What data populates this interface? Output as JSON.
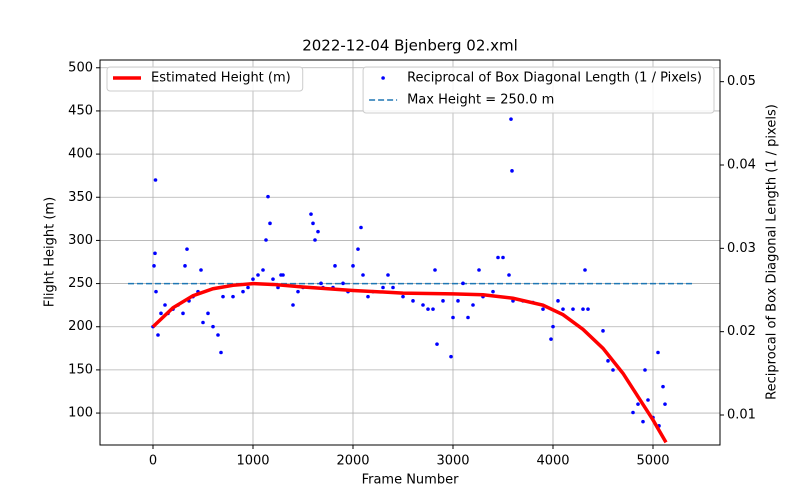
{
  "chart_data": {
    "type": "line",
    "title": "2022-12-04 Bjenberg 02.xml",
    "x_label": "Frame Number",
    "y_label": "Flight Height (m)",
    "y2_label": "Reciprocal of Box Diagonal Length (1 / pixels)",
    "xlim": [
      -530,
      5670
    ],
    "xticks": [
      0,
      1000,
      2000,
      3000,
      4000,
      5000
    ],
    "ylim": [
      63,
      509
    ],
    "yticks": [
      100,
      150,
      200,
      250,
      300,
      350,
      400,
      450,
      500
    ],
    "y2lim": [
      0.0064,
      0.0526
    ],
    "y2ticks": [
      0.01,
      0.02,
      0.03,
      0.04,
      0.05
    ],
    "grid": true,
    "series": [
      {
        "name": "Estimated Height (m)",
        "type": "line",
        "color": "#ff0000",
        "legend": "upper left",
        "x": [
          0,
          200,
          400,
          600,
          800,
          1000,
          1200,
          1500,
          2000,
          2500,
          3000,
          3300,
          3600,
          3900,
          4100,
          4300,
          4500,
          4700,
          4900,
          5000,
          5130
        ],
        "values": [
          200,
          222,
          236,
          244,
          248,
          250,
          249,
          246,
          242,
          239,
          238,
          237,
          233,
          225,
          214,
          197,
          175,
          146,
          110,
          92,
          66
        ]
      },
      {
        "name": "Reciprocal of Box Diagonal Length (1 / Pixels)",
        "type": "scatter",
        "axis": "y2",
        "color": "#0000ff",
        "legend": "upper right",
        "x": [
          0,
          10,
          20,
          25,
          30,
          50,
          80,
          120,
          150,
          200,
          250,
          300,
          320,
          340,
          360,
          400,
          450,
          480,
          500,
          550,
          600,
          650,
          680,
          700,
          800,
          900,
          950,
          1000,
          1050,
          1100,
          1130,
          1150,
          1170,
          1200,
          1250,
          1280,
          1300,
          1400,
          1450,
          1500,
          1580,
          1600,
          1620,
          1650,
          1680,
          1700,
          1800,
          1820,
          1900,
          1950,
          2000,
          2050,
          2080,
          2100,
          2150,
          2200,
          2300,
          2350,
          2400,
          2500,
          2600,
          2700,
          2750,
          2800,
          2820,
          2840,
          2900,
          2980,
          3000,
          3050,
          3100,
          3150,
          3200,
          3260,
          3300,
          3400,
          3450,
          3500,
          3560,
          3580,
          3590,
          3600,
          3700,
          3800,
          3900,
          3980,
          4000,
          4050,
          4100,
          4200,
          4300,
          4320,
          4350,
          4500,
          4550,
          4600,
          4800,
          4850,
          4900,
          4920,
          4950,
          5000,
          5050,
          5060,
          5100,
          5120
        ],
        "values": [
          0.0206,
          0.0279,
          0.0294,
          0.0382,
          0.0248,
          0.0196,
          0.0222,
          0.0232,
          0.0222,
          0.0227,
          0.0232,
          0.0222,
          0.0279,
          0.0299,
          0.0237,
          0.0242,
          0.0248,
          0.0274,
          0.0211,
          0.0222,
          0.0206,
          0.0196,
          0.0175,
          0.0242,
          0.0242,
          0.0248,
          0.0253,
          0.0263,
          0.0268,
          0.0274,
          0.031,
          0.0362,
          0.033,
          0.0263,
          0.0253,
          0.0268,
          0.0268,
          0.0232,
          0.0248,
          0.0253,
          0.0341,
          0.033,
          0.031,
          0.032,
          0.0258,
          0.0253,
          0.0253,
          0.0279,
          0.0258,
          0.0248,
          0.0279,
          0.0299,
          0.0325,
          0.0268,
          0.0242,
          0.0248,
          0.0253,
          0.0268,
          0.0253,
          0.0242,
          0.0237,
          0.0232,
          0.0227,
          0.0227,
          0.0274,
          0.0185,
          0.0237,
          0.017,
          0.0217,
          0.0237,
          0.0258,
          0.0217,
          0.0232,
          0.0274,
          0.0242,
          0.0248,
          0.0289,
          0.0289,
          0.0268,
          0.0455,
          0.0393,
          0.0237,
          0.0237,
          0.0235,
          0.0227,
          0.0191,
          0.0206,
          0.0237,
          0.0227,
          0.0227,
          0.0227,
          0.0274,
          0.0227,
          0.0201,
          0.0165,
          0.0154,
          0.0103,
          0.0113,
          0.0092,
          0.0154,
          0.0118,
          0.0097,
          0.0175,
          0.0087,
          0.0134,
          0.0113
        ]
      },
      {
        "name": "Max Height = 250.0 m",
        "type": "dashed",
        "color": "#1f77b4",
        "legend": "upper right",
        "x": [
          -250,
          5400
        ],
        "values": [
          250,
          250
        ]
      }
    ]
  }
}
